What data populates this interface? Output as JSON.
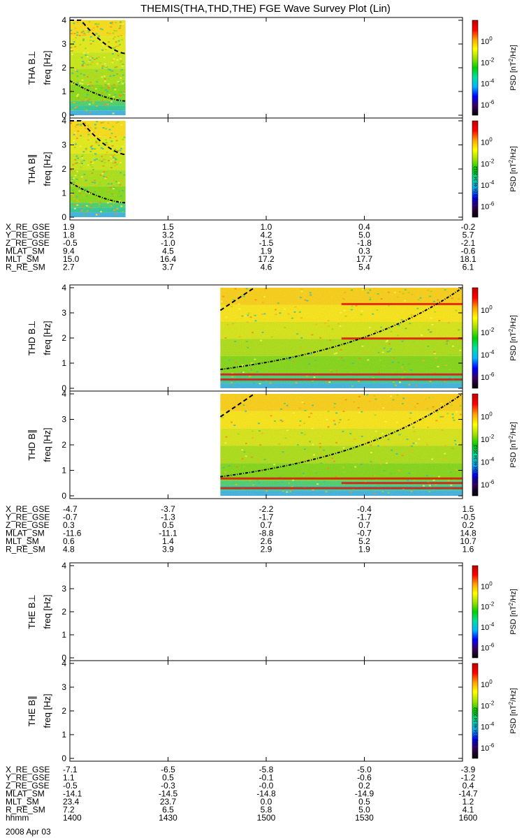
{
  "title": "THEMIS(THA,THD,THE) FGE Wave Survey Plot (Lin)",
  "colorbar": {
    "label": "PSD [nT",
    "label_sup": "2",
    "label_end": "/Hz]",
    "tick_base": "10",
    "ticks": [
      "0",
      "-2",
      "-4",
      "-6"
    ],
    "stamp": "Mon Sep 3 04:46:34 2012",
    "stops": [
      "#000000",
      "#3a0060",
      "#0000ff",
      "#00b4ff",
      "#00e0a0",
      "#00d000",
      "#a0e000",
      "#ffff00",
      "#ffa000",
      "#ff0000",
      "#c00000"
    ]
  },
  "panel_tick_labels": [
    "0",
    "1",
    "2",
    "3",
    "4"
  ],
  "ylabel": "freq [Hz]",
  "chart_data": {
    "type": "heatmap",
    "time_axis": {
      "range": [
        "1400",
        "1600"
      ],
      "unit": "hhmm",
      "date": "2008 Apr 03",
      "ticks": [
        "1400",
        "1430",
        "1500",
        "1530",
        "1600"
      ]
    },
    "freq_range": [
      0,
      4
    ],
    "zscale": "log",
    "zlim": [
      1e-07,
      100
    ],
    "panels": [
      {
        "name": "THA B⊥",
        "probe": "THA",
        "data_time_range": [
          "1400",
          "1417"
        ]
      },
      {
        "name": "THA B∥",
        "probe": "THA",
        "data_time_range": [
          "1400",
          "1417"
        ]
      },
      {
        "name": "THD B⊥",
        "probe": "THD",
        "data_time_range": [
          "1446",
          "1600"
        ]
      },
      {
        "name": "THD B∥",
        "probe": "THD",
        "data_time_range": [
          "1446",
          "1600"
        ]
      },
      {
        "name": "THE B⊥",
        "probe": "THE",
        "data_time_range": null
      },
      {
        "name": "THE B∥",
        "probe": "THE",
        "data_time_range": null
      }
    ]
  },
  "ephem_groups": [
    {
      "probe": "THA",
      "labels": [
        "X_RE_GSE",
        "Y_RE_GSE",
        "Z_RE_GSE",
        "MLAT_SM",
        "MLT_SM",
        "R_RE_SM"
      ],
      "values": [
        [
          "1.9",
          "1.5",
          "1.0",
          "0.4",
          "-0.2"
        ],
        [
          "1.8",
          "3.2",
          "4.2",
          "5.0",
          "5.7"
        ],
        [
          "-0.5",
          "-1.0",
          "-1.5",
          "-1.8",
          "-2.1"
        ],
        [
          "9.4",
          "4.5",
          "1.9",
          "0.3",
          "-0.6"
        ],
        [
          "15.0",
          "16.4",
          "17.2",
          "17.7",
          "18.1"
        ],
        [
          "2.7",
          "3.7",
          "4.6",
          "5.4",
          "6.1"
        ]
      ]
    },
    {
      "probe": "THD",
      "labels": [
        "X_RE_GSE",
        "Y_RE_GSE",
        "Z_RE_GSE",
        "MLAT_SM",
        "MLT_SM",
        "R_RE_SM"
      ],
      "values": [
        [
          "-4.7",
          "-3.7",
          "-2.2",
          "-0.4",
          "1.5"
        ],
        [
          "-0.7",
          "-1.3",
          "-1.7",
          "-1.7",
          "-0.5"
        ],
        [
          "0.3",
          "0.5",
          "0.7",
          "0.7",
          "0.2"
        ],
        [
          "-11.6",
          "-11.1",
          "-8.8",
          "-0.7",
          "14.8"
        ],
        [
          "0.6",
          "1.4",
          "2.6",
          "5.2",
          "10.7"
        ],
        [
          "4.8",
          "3.9",
          "2.9",
          "1.9",
          "1.6"
        ]
      ]
    },
    {
      "probe": "THE",
      "labels": [
        "X_RE_GSE",
        "Y_RE_GSE",
        "Z_RE_GSE",
        "MLAT_SM",
        "MLT_SM",
        "R_RE_SM",
        "hhmm"
      ],
      "values": [
        [
          "-7.1",
          "-6.5",
          "-5.8",
          "-5.0",
          "-3.9"
        ],
        [
          "1.1",
          "0.5",
          "-0.1",
          "-0.6",
          "-1.2"
        ],
        [
          "-0.5",
          "-0.3",
          "-0.0",
          "0.2",
          "0.4"
        ],
        [
          "-14.1",
          "-14.5",
          "-14.8",
          "-14.9",
          "-14.7"
        ],
        [
          "23.4",
          "23.7",
          "0.0",
          "0.5",
          "1.2"
        ],
        [
          "7.2",
          "6.5",
          "5.8",
          "5.0",
          "4.1"
        ],
        [
          "1400",
          "1430",
          "1500",
          "1530",
          "1600"
        ]
      ]
    }
  ],
  "date": "2008 Apr 03"
}
